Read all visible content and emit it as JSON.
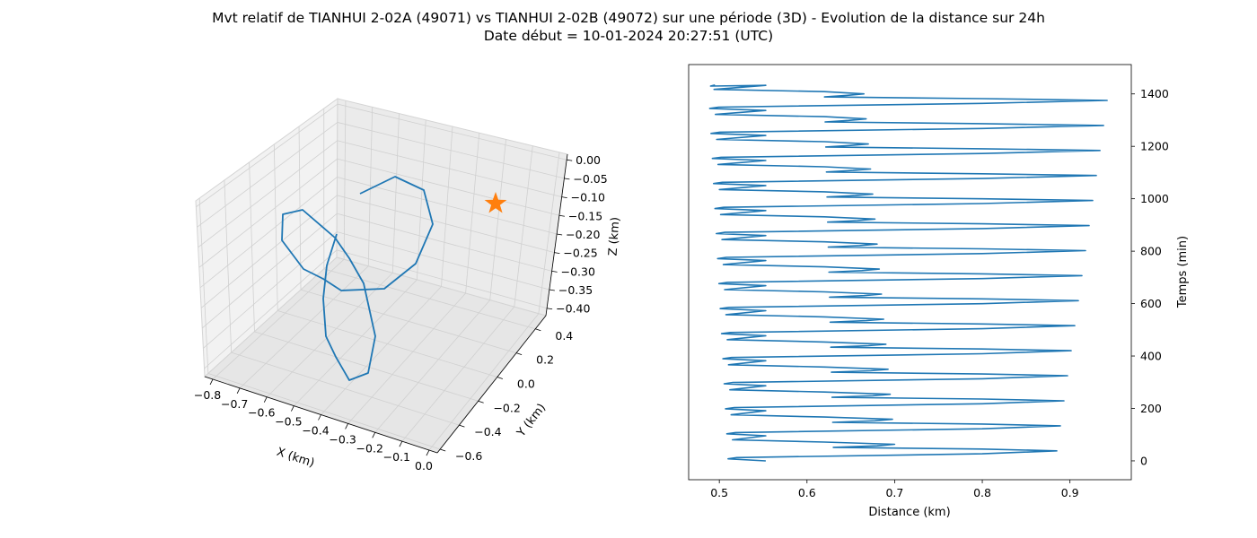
{
  "title_line1": "Mvt relatif de TIANHUI 2-02A (49071) vs TIANHUI 2-02B (49072) sur une période (3D) - Evolution de la distance sur 24h",
  "title_line2": "Date début = 10-01-2024 20:27:51 (UTC)",
  "colors": {
    "series": "#1f77b4",
    "marker": "#ff7f0e",
    "pane": "#f2f2f2",
    "grid": "#d0d0d0"
  },
  "chart_data": [
    {
      "type": "line3d",
      "xlabel": "X (km)",
      "ylabel": "Y (km)",
      "zlabel": "Z (km)",
      "x_ticks": [
        "−0.8",
        "−0.7",
        "−0.6",
        "−0.5",
        "−0.4",
        "−0.3",
        "−0.2",
        "−0.1",
        "0.0"
      ],
      "y_ticks": [
        "−0.6",
        "−0.4",
        "−0.2",
        "0.0",
        "0.2",
        "0.4"
      ],
      "z_ticks": [
        "0.00",
        "−0.05",
        "−0.10",
        "−0.15",
        "−0.20",
        "−0.25",
        "−0.30",
        "−0.35",
        "−0.40"
      ],
      "xlim": [
        -0.85,
        0.05
      ],
      "ylim": [
        -0.6,
        0.5
      ],
      "zlim": [
        -0.42,
        0.0
      ],
      "trajectory_display": [
        [
          401,
          216
        ],
        [
          440,
          197
        ],
        [
          472,
          212
        ],
        [
          482,
          250
        ],
        [
          463,
          294
        ],
        [
          428,
          322
        ],
        [
          380,
          324
        ],
        [
          360,
          311
        ],
        [
          338,
          300
        ],
        [
          314,
          268
        ],
        [
          315,
          239
        ],
        [
          337,
          234
        ],
        [
          373,
          265
        ],
        [
          389,
          288
        ],
        [
          405,
          316
        ],
        [
          418,
          375
        ],
        [
          410,
          416
        ],
        [
          389,
          424
        ],
        [
          374,
          398
        ],
        [
          363,
          375
        ],
        [
          360,
          333
        ],
        [
          364,
          296
        ],
        [
          375,
          261
        ]
      ],
      "marker": {
        "label": "star",
        "x": 0.0,
        "y": 0.0,
        "z": -0.1
      }
    },
    {
      "type": "line",
      "xlabel": "Distance (km)",
      "ylabel": "Temps (min)",
      "xlim": [
        0.465,
        0.97
      ],
      "ylim": [
        -72,
        1512
      ],
      "x_ticks": [
        "0.5",
        "0.6",
        "0.7",
        "0.8",
        "0.9"
      ],
      "x_tick_values": [
        0.5,
        0.6,
        0.7,
        0.8,
        0.9
      ],
      "y_ticks": [
        "0",
        "200",
        "400",
        "600",
        "800",
        "1000",
        "1200",
        "1400"
      ],
      "y_tick_values": [
        0,
        200,
        400,
        600,
        800,
        1000,
        1200,
        1400
      ],
      "period_min": 95.5,
      "rounds": 15,
      "inner_min_dist": {
        "start": 0.63,
        "end": 0.62
      },
      "start_point": {
        "t": 0,
        "d": 0.553
      }
    }
  ]
}
